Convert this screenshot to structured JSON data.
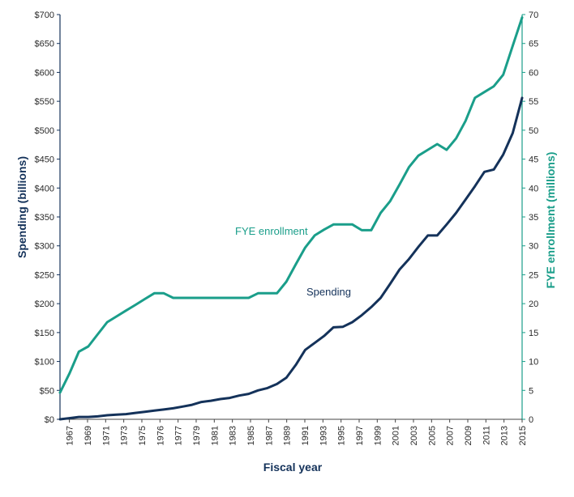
{
  "chart_data": {
    "type": "line",
    "title": "",
    "xlabel": "Fiscal year",
    "ylabel_left": "Spending (billions)",
    "ylabel_right": "FYE enrollment (millions)",
    "x_range": [
      1966,
      2015
    ],
    "y_left_range": [
      0,
      700
    ],
    "y_right_range": [
      0,
      70
    ],
    "y_left_ticks": [
      "$0",
      "$50",
      "$100",
      "$150",
      "$200",
      "$250",
      "$300",
      "$350",
      "$400",
      "$450",
      "$500",
      "$550",
      "$600",
      "$650",
      "$700"
    ],
    "y_right_ticks": [
      "0",
      "5",
      "10",
      "15",
      "20",
      "25",
      "30",
      "35",
      "40",
      "45",
      "50",
      "55",
      "60",
      "65",
      "70"
    ],
    "x_tick_labels": [
      "1967",
      "1969",
      "1971",
      "1973",
      "1975",
      "1976",
      "1977",
      "1979",
      "1981",
      "1983",
      "1985",
      "1987",
      "1989",
      "1991",
      "1993",
      "1995",
      "1997",
      "1999",
      "2001",
      "2003",
      "2005",
      "2007",
      "2009",
      "2011",
      "2013",
      "2015"
    ],
    "grid": false,
    "series": [
      {
        "name": "FYE enrollment",
        "axis": "right",
        "color": "#1a9e8a",
        "label": "FYE enrollment",
        "points": [
          [
            1966,
            4.6
          ],
          [
            1967,
            7.9
          ],
          [
            1968,
            11.7
          ],
          [
            1969,
            12.6
          ],
          [
            1970,
            14.7
          ],
          [
            1971,
            16.8
          ],
          [
            1972,
            17.8
          ],
          [
            1973,
            18.8
          ],
          [
            1974,
            19.8
          ],
          [
            1975,
            20.8
          ],
          [
            1976,
            21.8
          ],
          [
            1977,
            21.8
          ],
          [
            1978,
            21.0
          ],
          [
            1979,
            21.0
          ],
          [
            1980,
            21.0
          ],
          [
            1981,
            21.0
          ],
          [
            1982,
            21.0
          ],
          [
            1983,
            21.0
          ],
          [
            1984,
            21.0
          ],
          [
            1985,
            21.0
          ],
          [
            1986,
            21.0
          ],
          [
            1987,
            21.8
          ],
          [
            1988,
            21.8
          ],
          [
            1989,
            21.8
          ],
          [
            1990,
            23.8
          ],
          [
            1991,
            26.8
          ],
          [
            1992,
            29.7
          ],
          [
            1993,
            31.8
          ],
          [
            1994,
            32.8
          ],
          [
            1995,
            33.7
          ],
          [
            1996,
            33.7
          ],
          [
            1997,
            33.7
          ],
          [
            1998,
            32.7
          ],
          [
            1999,
            32.7
          ],
          [
            2000,
            35.7
          ],
          [
            2001,
            37.7
          ],
          [
            2002,
            40.6
          ],
          [
            2003,
            43.6
          ],
          [
            2004,
            45.6
          ],
          [
            2005,
            46.6
          ],
          [
            2006,
            47.6
          ],
          [
            2007,
            46.6
          ],
          [
            2008,
            48.6
          ],
          [
            2009,
            51.6
          ],
          [
            2010,
            55.6
          ],
          [
            2011,
            56.6
          ],
          [
            2012,
            57.6
          ],
          [
            2013,
            59.6
          ],
          [
            2014,
            64.6
          ],
          [
            2015,
            69.5
          ]
        ]
      },
      {
        "name": "Spending",
        "axis": "left",
        "color": "#14325a",
        "label": "Spending",
        "points": [
          [
            1966,
            0
          ],
          [
            1967,
            2
          ],
          [
            1968,
            4
          ],
          [
            1969,
            4
          ],
          [
            1970,
            5
          ],
          [
            1971,
            7
          ],
          [
            1972,
            8
          ],
          [
            1973,
            9
          ],
          [
            1974,
            11
          ],
          [
            1975,
            13
          ],
          [
            1976,
            15
          ],
          [
            1977,
            17
          ],
          [
            1978,
            19
          ],
          [
            1979,
            22
          ],
          [
            1980,
            25
          ],
          [
            1981,
            30
          ],
          [
            1982,
            32
          ],
          [
            1983,
            35
          ],
          [
            1984,
            37
          ],
          [
            1985,
            41
          ],
          [
            1986,
            44
          ],
          [
            1987,
            50
          ],
          [
            1988,
            54
          ],
          [
            1989,
            61
          ],
          [
            1990,
            72
          ],
          [
            1991,
            94
          ],
          [
            1992,
            120
          ],
          [
            1993,
            132
          ],
          [
            1994,
            144
          ],
          [
            1995,
            159
          ],
          [
            1996,
            160
          ],
          [
            1997,
            168
          ],
          [
            1998,
            180
          ],
          [
            1999,
            194
          ],
          [
            2000,
            210
          ],
          [
            2001,
            234
          ],
          [
            2002,
            259
          ],
          [
            2003,
            277
          ],
          [
            2004,
            298
          ],
          [
            2005,
            318
          ],
          [
            2006,
            318
          ],
          [
            2007,
            337
          ],
          [
            2008,
            357
          ],
          [
            2009,
            380
          ],
          [
            2010,
            403
          ],
          [
            2011,
            428
          ],
          [
            2012,
            432
          ],
          [
            2013,
            458
          ],
          [
            2014,
            495
          ],
          [
            2015,
            556
          ]
        ]
      }
    ]
  }
}
